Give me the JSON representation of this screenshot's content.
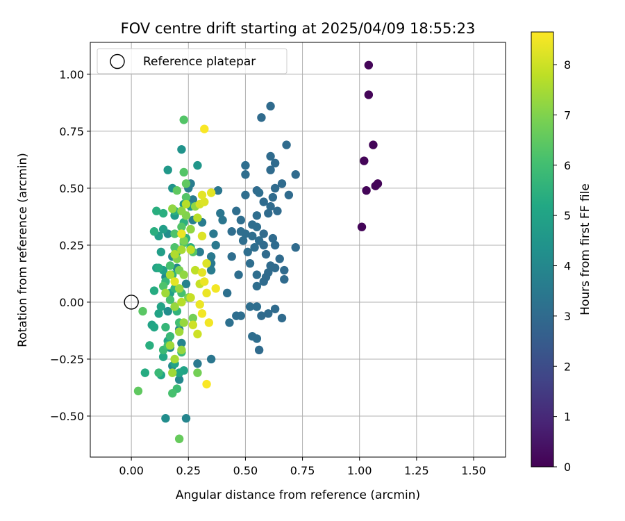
{
  "chart_data": {
    "type": "scatter",
    "title": "FOV centre drift starting at 2025/04/09 18:55:23",
    "xlabel": "Angular distance from reference (arcmin)",
    "ylabel": "Rotation from reference (arcmin)",
    "xlim": [
      -0.18,
      1.64
    ],
    "ylim": [
      -0.68,
      1.14
    ],
    "xticks": [
      0.0,
      0.25,
      0.5,
      0.75,
      1.0,
      1.25,
      1.5
    ],
    "xtick_labels": [
      "0.00",
      "0.25",
      "0.50",
      "0.75",
      "1.00",
      "1.25",
      "1.50"
    ],
    "yticks": [
      -0.5,
      -0.25,
      0.0,
      0.25,
      0.5,
      0.75,
      1.0
    ],
    "ytick_labels": [
      "−0.50",
      "−0.25",
      "0.00",
      "0.25",
      "0.50",
      "0.75",
      "1.00"
    ],
    "grid": true,
    "legend": {
      "position": "top-left",
      "entries": [
        "Reference platepar"
      ]
    },
    "reference_point": {
      "x": 0.0,
      "y": 0.0,
      "label": "Reference platepar"
    },
    "colorbar": {
      "label": "Hours from first FF file",
      "colormap": "viridis",
      "min": 0,
      "max": 8.65,
      "ticks": [
        0,
        1,
        2,
        3,
        4,
        5,
        6,
        7,
        8
      ],
      "tick_labels": [
        "0",
        "1",
        "2",
        "3",
        "4",
        "5",
        "6",
        "7",
        "8"
      ]
    },
    "points": [
      [
        1.04,
        1.04,
        0.1
      ],
      [
        1.04,
        0.91,
        0.1
      ],
      [
        1.06,
        0.69,
        0.1
      ],
      [
        1.02,
        0.62,
        0.1
      ],
      [
        1.08,
        0.52,
        0.1
      ],
      [
        1.07,
        0.51,
        0.1
      ],
      [
        1.03,
        0.49,
        0.1
      ],
      [
        1.01,
        0.33,
        0.1
      ],
      [
        0.61,
        0.86,
        3.0
      ],
      [
        0.57,
        0.81,
        3.0
      ],
      [
        0.68,
        0.69,
        3.0
      ],
      [
        0.61,
        0.64,
        3.0
      ],
      [
        0.63,
        0.61,
        3.0
      ],
      [
        0.5,
        0.6,
        3.1
      ],
      [
        0.61,
        0.58,
        3.0
      ],
      [
        0.5,
        0.56,
        3.1
      ],
      [
        0.72,
        0.56,
        3.0
      ],
      [
        0.66,
        0.52,
        3.0
      ],
      [
        0.63,
        0.5,
        3.0
      ],
      [
        0.55,
        0.49,
        3.0
      ],
      [
        0.56,
        0.48,
        3.1
      ],
      [
        0.5,
        0.47,
        3.1
      ],
      [
        0.62,
        0.46,
        3.0
      ],
      [
        0.69,
        0.47,
        3.0
      ],
      [
        0.58,
        0.44,
        3.0
      ],
      [
        0.61,
        0.42,
        3.0
      ],
      [
        0.64,
        0.4,
        3.0
      ],
      [
        0.46,
        0.4,
        3.1
      ],
      [
        0.6,
        0.39,
        3.0
      ],
      [
        0.55,
        0.38,
        3.1
      ],
      [
        0.48,
        0.36,
        3.1
      ],
      [
        0.53,
        0.34,
        3.1
      ],
      [
        0.55,
        0.33,
        3.1
      ],
      [
        0.44,
        0.31,
        3.1
      ],
      [
        0.48,
        0.31,
        3.1
      ],
      [
        0.5,
        0.3,
        3.1
      ],
      [
        0.58,
        0.3,
        3.0
      ],
      [
        0.53,
        0.29,
        3.1
      ],
      [
        0.62,
        0.28,
        3.0
      ],
      [
        0.49,
        0.27,
        3.1
      ],
      [
        0.56,
        0.27,
        3.1
      ],
      [
        0.58,
        0.25,
        3.0
      ],
      [
        0.63,
        0.25,
        3.0
      ],
      [
        0.54,
        0.24,
        3.1
      ],
      [
        0.72,
        0.24,
        3.0
      ],
      [
        0.51,
        0.22,
        3.1
      ],
      [
        0.59,
        0.21,
        3.0
      ],
      [
        0.44,
        0.2,
        3.1
      ],
      [
        0.65,
        0.19,
        3.0
      ],
      [
        0.52,
        0.17,
        3.1
      ],
      [
        0.61,
        0.16,
        3.0
      ],
      [
        0.63,
        0.15,
        3.0
      ],
      [
        0.67,
        0.14,
        3.0
      ],
      [
        0.6,
        0.13,
        3.0
      ],
      [
        0.55,
        0.12,
        3.1
      ],
      [
        0.47,
        0.12,
        3.1
      ],
      [
        0.59,
        0.11,
        3.0
      ],
      [
        0.67,
        0.1,
        3.0
      ],
      [
        0.58,
        0.09,
        3.0
      ],
      [
        0.55,
        0.07,
        3.1
      ],
      [
        0.42,
        0.04,
        3.2
      ],
      [
        0.52,
        -0.02,
        3.1
      ],
      [
        0.55,
        -0.02,
        3.1
      ],
      [
        0.63,
        -0.03,
        3.0
      ],
      [
        0.46,
        -0.06,
        3.1
      ],
      [
        0.48,
        -0.06,
        3.1
      ],
      [
        0.6,
        -0.05,
        3.0
      ],
      [
        0.57,
        -0.06,
        3.0
      ],
      [
        0.66,
        -0.07,
        3.0
      ],
      [
        0.43,
        -0.09,
        3.2
      ],
      [
        0.53,
        -0.15,
        3.1
      ],
      [
        0.55,
        -0.16,
        3.1
      ],
      [
        0.56,
        -0.21,
        3.0
      ],
      [
        0.35,
        -0.25,
        3.4
      ],
      [
        0.29,
        -0.27,
        3.5
      ],
      [
        0.38,
        0.49,
        3.4
      ],
      [
        0.39,
        0.39,
        3.4
      ],
      [
        0.4,
        0.36,
        3.4
      ],
      [
        0.36,
        0.3,
        3.5
      ],
      [
        0.37,
        0.25,
        3.5
      ],
      [
        0.35,
        0.2,
        3.5
      ],
      [
        0.35,
        0.17,
        3.5
      ],
      [
        0.26,
        0.52,
        3.6
      ],
      [
        0.25,
        0.5,
        3.6
      ],
      [
        0.27,
        0.45,
        3.6
      ],
      [
        0.31,
        0.35,
        3.6
      ],
      [
        0.27,
        0.36,
        3.7
      ],
      [
        0.35,
        0.14,
        3.6
      ],
      [
        0.3,
        0.22,
        3.6
      ],
      [
        0.22,
        0.3,
        3.8
      ],
      [
        0.18,
        0.2,
        3.9
      ],
      [
        0.24,
        0.08,
        3.8
      ],
      [
        0.21,
        -0.12,
        3.9
      ],
      [
        0.21,
        -0.34,
        4.0
      ],
      [
        0.24,
        -0.51,
        3.9
      ],
      [
        0.15,
        -0.51,
        4.2
      ],
      [
        0.22,
        -0.18,
        3.9
      ],
      [
        0.18,
        -0.28,
        4.1
      ],
      [
        0.17,
        -0.2,
        4.1
      ],
      [
        0.16,
        -0.04,
        4.2
      ],
      [
        0.15,
        0.11,
        4.1
      ],
      [
        0.2,
        0.15,
        4.0
      ],
      [
        0.16,
        0.3,
        4.2
      ],
      [
        0.18,
        0.5,
        4.4
      ],
      [
        0.22,
        0.67,
        4.4
      ],
      [
        0.16,
        0.58,
        4.6
      ],
      [
        0.29,
        0.6,
        4.5
      ],
      [
        0.26,
        0.42,
        4.5
      ],
      [
        0.23,
        0.43,
        4.6
      ],
      [
        0.19,
        0.38,
        4.7
      ],
      [
        0.14,
        0.32,
        4.8
      ],
      [
        0.12,
        0.29,
        4.8
      ],
      [
        0.13,
        0.22,
        4.8
      ],
      [
        0.11,
        0.15,
        4.9
      ],
      [
        0.14,
        0.14,
        4.9
      ],
      [
        0.17,
        0.04,
        4.9
      ],
      [
        0.13,
        -0.02,
        5.0
      ],
      [
        0.12,
        -0.05,
        5.0
      ],
      [
        0.09,
        -0.1,
        5.0
      ],
      [
        0.1,
        -0.11,
        5.1
      ],
      [
        0.16,
        -0.17,
        5.0
      ],
      [
        0.14,
        -0.24,
        5.1
      ],
      [
        0.19,
        -0.27,
        5.0
      ],
      [
        0.23,
        -0.3,
        5.0
      ],
      [
        0.21,
        -0.31,
        5.1
      ],
      [
        0.13,
        -0.32,
        5.1
      ],
      [
        0.06,
        -0.31,
        5.3
      ],
      [
        0.08,
        -0.19,
        5.4
      ],
      [
        0.1,
        0.05,
        5.3
      ],
      [
        0.12,
        0.15,
        5.3
      ],
      [
        0.1,
        0.31,
        5.4
      ],
      [
        0.11,
        0.4,
        5.4
      ],
      [
        0.14,
        0.39,
        5.4
      ],
      [
        0.19,
        0.4,
        5.4
      ],
      [
        0.23,
        0.35,
        5.5
      ],
      [
        0.24,
        0.28,
        5.5
      ],
      [
        0.26,
        0.24,
        5.5
      ],
      [
        0.2,
        0.22,
        5.6
      ],
      [
        0.18,
        0.12,
        5.6
      ],
      [
        0.15,
        0.09,
        5.7
      ],
      [
        0.19,
        0.06,
        5.6
      ],
      [
        0.2,
        -0.04,
        5.6
      ],
      [
        0.15,
        -0.11,
        5.7
      ],
      [
        0.17,
        -0.15,
        5.8
      ],
      [
        0.14,
        -0.21,
        5.8
      ],
      [
        0.22,
        -0.22,
        5.8
      ],
      [
        0.12,
        -0.31,
        5.8
      ],
      [
        0.2,
        -0.38,
        5.9
      ],
      [
        0.18,
        -0.4,
        6.1
      ],
      [
        0.16,
        -0.19,
        6.0
      ],
      [
        0.21,
        -0.09,
        6.0
      ],
      [
        0.17,
        0.01,
        6.1
      ],
      [
        0.22,
        0.04,
        6.1
      ],
      [
        0.14,
        0.07,
        6.2
      ],
      [
        0.17,
        0.16,
        6.1
      ],
      [
        0.19,
        0.24,
        6.2
      ],
      [
        0.23,
        0.26,
        6.3
      ],
      [
        0.27,
        0.22,
        6.3
      ],
      [
        0.19,
        0.3,
        6.2
      ],
      [
        0.22,
        0.33,
        6.3
      ],
      [
        0.24,
        0.46,
        6.3
      ],
      [
        0.23,
        0.57,
        6.3
      ],
      [
        0.24,
        0.52,
        6.5
      ],
      [
        0.2,
        0.49,
        6.5
      ],
      [
        0.23,
        0.8,
        6.3
      ],
      [
        0.03,
        -0.39,
        6.5
      ],
      [
        0.05,
        -0.04,
        6.4
      ],
      [
        0.21,
        -0.6,
        6.6
      ],
      [
        0.29,
        -0.31,
        6.8
      ],
      [
        0.27,
        -0.07,
        6.8
      ],
      [
        0.25,
        0.02,
        6.9
      ],
      [
        0.21,
        0.14,
        6.9
      ],
      [
        0.2,
        0.19,
        7.0
      ],
      [
        0.23,
        0.27,
        6.9
      ],
      [
        0.24,
        0.38,
        7.0
      ],
      [
        0.22,
        0.4,
        7.1
      ],
      [
        0.18,
        0.41,
        7.2
      ],
      [
        0.28,
        0.42,
        7.2
      ],
      [
        0.26,
        0.32,
        7.2
      ],
      [
        0.23,
        0.12,
        7.2
      ],
      [
        0.21,
        0.06,
        7.3
      ],
      [
        0.19,
        -0.02,
        7.3
      ],
      [
        0.23,
        -0.09,
        7.3
      ],
      [
        0.21,
        -0.13,
        7.4
      ],
      [
        0.17,
        -0.19,
        7.4
      ],
      [
        0.22,
        -0.21,
        7.3
      ],
      [
        0.19,
        -0.25,
        7.5
      ],
      [
        0.18,
        -0.31,
        7.4
      ],
      [
        0.19,
        0.21,
        7.6
      ],
      [
        0.17,
        0.12,
        7.6
      ],
      [
        0.22,
        0.0,
        7.7
      ],
      [
        0.24,
        0.43,
        7.7
      ],
      [
        0.29,
        0.37,
        7.7
      ],
      [
        0.26,
        0.23,
        7.8
      ],
      [
        0.28,
        0.14,
        7.8
      ],
      [
        0.3,
        0.08,
        7.9
      ],
      [
        0.26,
        0.02,
        7.9
      ],
      [
        0.27,
        -0.1,
        8.0
      ],
      [
        0.29,
        -0.14,
        8.0
      ],
      [
        0.3,
        0.43,
        8.1
      ],
      [
        0.32,
        0.44,
        8.2
      ],
      [
        0.31,
        0.47,
        8.3
      ],
      [
        0.35,
        0.48,
        8.3
      ],
      [
        0.31,
        0.29,
        8.2
      ],
      [
        0.33,
        0.17,
        8.2
      ],
      [
        0.31,
        0.13,
        8.3
      ],
      [
        0.32,
        0.09,
        8.4
      ],
      [
        0.33,
        0.04,
        8.4
      ],
      [
        0.3,
        -0.01,
        8.4
      ],
      [
        0.31,
        -0.05,
        8.5
      ],
      [
        0.34,
        -0.09,
        8.5
      ],
      [
        0.37,
        0.06,
        8.5
      ],
      [
        0.32,
        0.76,
        8.6
      ],
      [
        0.33,
        -0.36,
        8.6
      ],
      [
        0.22,
        0.3,
        8.4
      ],
      [
        0.19,
        0.09,
        8.3
      ],
      [
        0.22,
        0.23,
        7.5
      ],
      [
        0.15,
        0.04,
        7.4
      ]
    ]
  }
}
